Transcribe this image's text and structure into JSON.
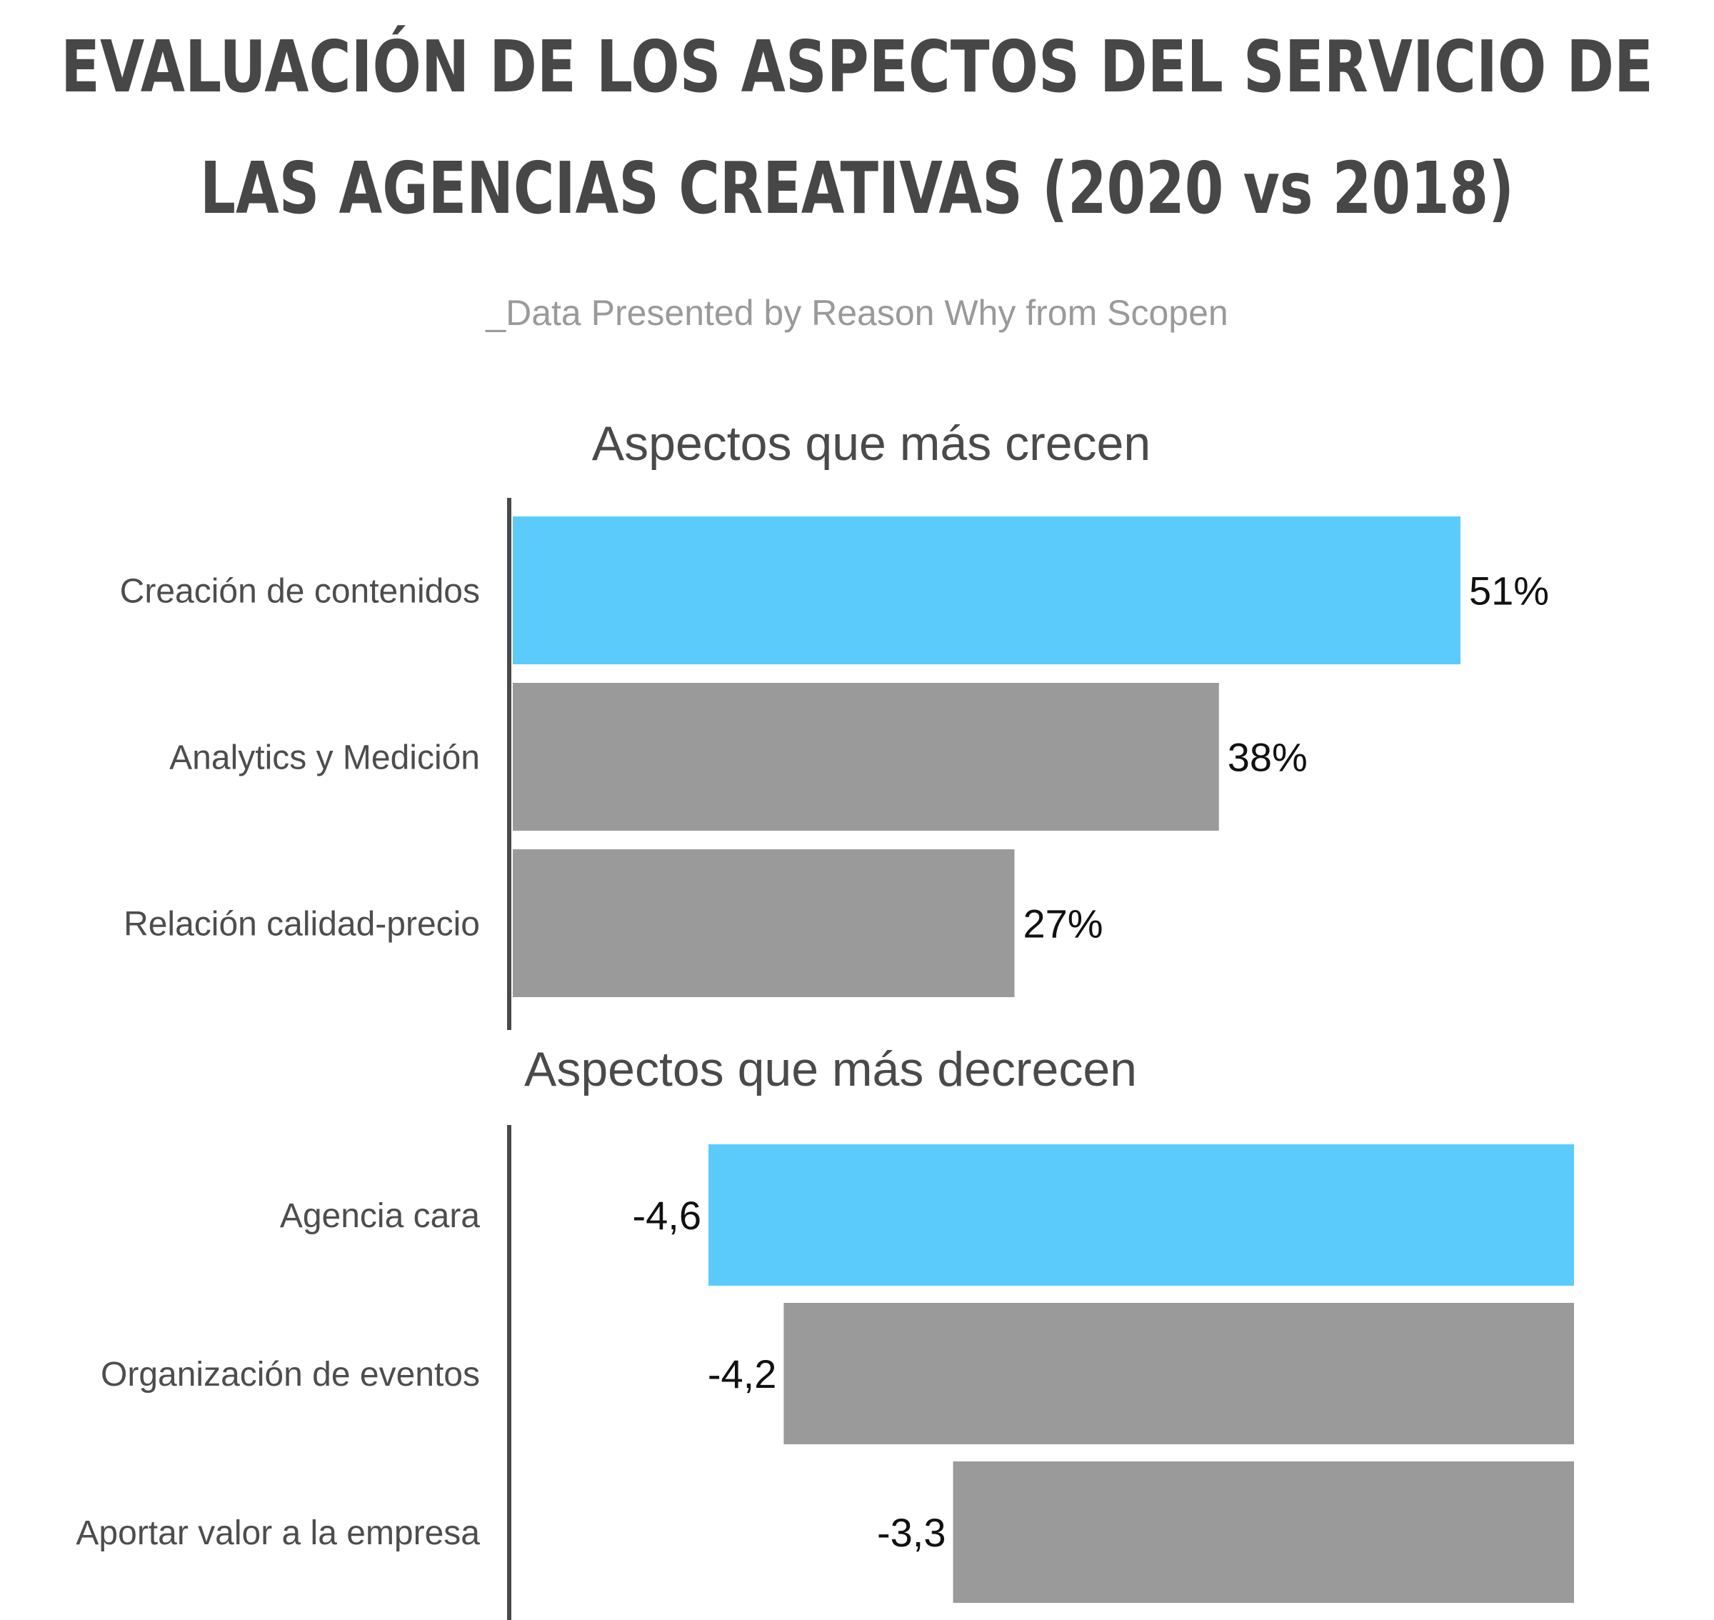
{
  "title_lines": [
    "EVALUACIÓN DE LOS ASPECTOS DEL SERVICIO DE",
    "LAS AGENCIAS CREATIVAS (2020 vs 2018)"
  ],
  "subtitle": "_Data Presented by Reason Why from Scopen",
  "colors": {
    "highlight": "#5bcbfb",
    "bar": "#9a9a9a",
    "axis": "#4a4a4a",
    "title": "#474747",
    "subtitle": "#9a9a9a",
    "label": "#4d4d4d",
    "value": "#111111"
  },
  "chart_data": [
    {
      "type": "bar",
      "orientation": "horizontal",
      "title": "Aspectos que más crecen",
      "categories": [
        "Creación de contenidos",
        "Analytics y Medición",
        "Relación calidad-precio"
      ],
      "values": [
        51,
        38,
        27
      ],
      "value_labels": [
        "51%",
        "38%",
        "27%"
      ],
      "highlight": [
        true,
        false,
        false
      ],
      "unit": "%",
      "xlim": [
        0,
        51
      ]
    },
    {
      "type": "bar",
      "orientation": "horizontal",
      "title": "Aspectos que más decrecen",
      "categories": [
        "Agencia cara",
        "Organización de eventos",
        "Aportar valor a la empresa"
      ],
      "values": [
        -4.6,
        -4.2,
        -3.3
      ],
      "value_labels": [
        "-4,6",
        "-4,2",
        "-3,3"
      ],
      "highlight": [
        true,
        false,
        false
      ],
      "xlim": [
        -4.6,
        0
      ]
    }
  ]
}
